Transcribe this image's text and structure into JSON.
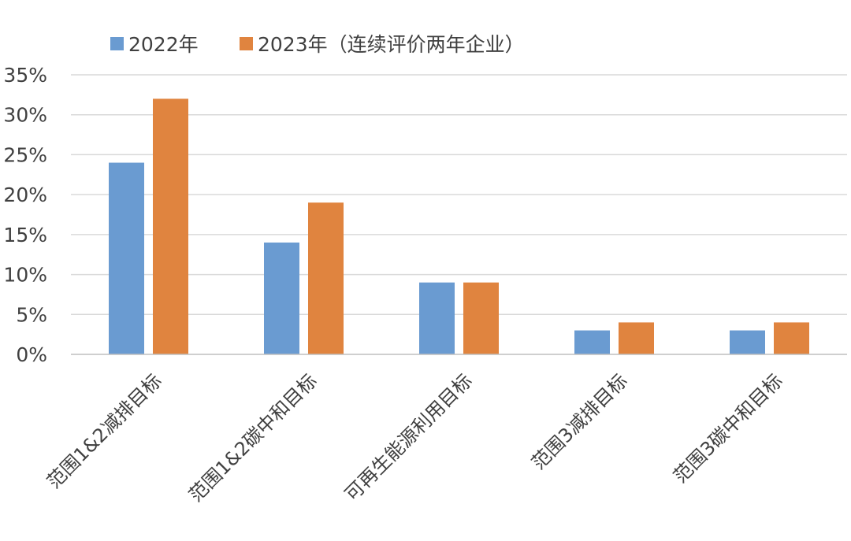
{
  "chart_data": {
    "type": "bar",
    "categories": [
      "范围1&2减排目标",
      "范围1&2碳中和目标",
      "可再生能源利用目标",
      "范围3减排目标",
      "范围3碳中和目标"
    ],
    "series": [
      {
        "name": "2022年",
        "color": "#6a9bd1",
        "values": [
          24,
          14,
          9,
          3,
          3
        ]
      },
      {
        "name": "2023年（连续评价两年企业）",
        "color": "#e0843f",
        "values": [
          32,
          19,
          9,
          4,
          4
        ]
      }
    ],
    "y_ticks": [
      "0%",
      "5%",
      "10%",
      "15%",
      "20%",
      "25%",
      "30%",
      "35%"
    ],
    "ylim": [
      0,
      35
    ],
    "y_unit": "%",
    "grid": true,
    "legend_position": "top-left"
  }
}
